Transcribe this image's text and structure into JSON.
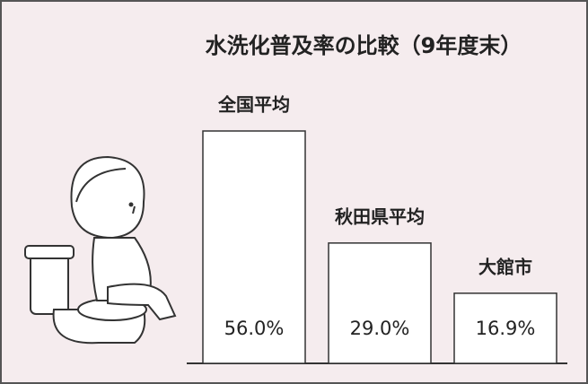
{
  "chart_data": {
    "type": "bar",
    "title": "水洗化普及率の比較（9年度末）",
    "categories": [
      "全国平均",
      "秋田県平均",
      "大館市"
    ],
    "values": [
      56.0,
      29.0,
      16.9
    ],
    "value_labels": [
      "56.0%",
      "29.0%",
      "16.9%"
    ],
    "color": "#ffffff"
  }
}
